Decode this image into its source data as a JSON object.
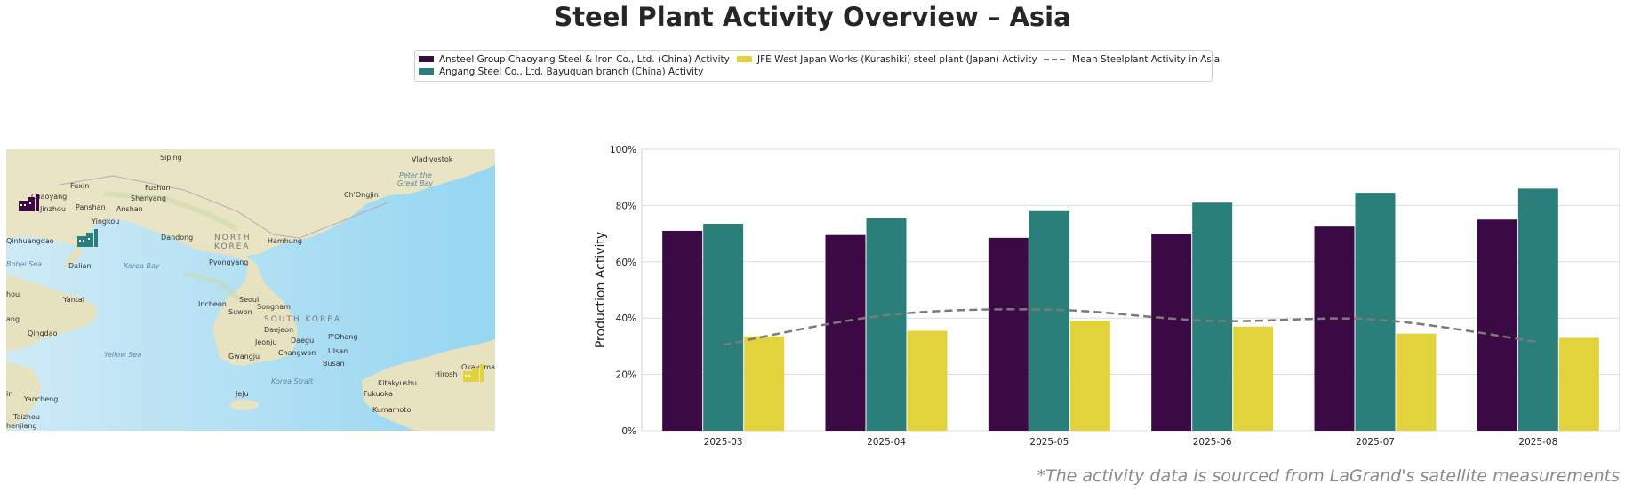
{
  "title": "Steel Plant Activity Overview – Asia",
  "source_note": "*The activity data is sourced from LaGrand's satellite measurements",
  "legend": {
    "placement": "top-center",
    "items": [
      {
        "label": "Ansteel Group Chaoyang Steel & Iron Co., Ltd. (China) Activity",
        "color": "#3b0a45",
        "kind": "bar"
      },
      {
        "label": "Angang Steel Co., Ltd. Bayuquan branch (China) Activity",
        "color": "#2a7f7a",
        "kind": "bar"
      },
      {
        "label": "JFE West Japan Works (Kurashiki) steel plant (Japan) Activity",
        "color": "#e2d23c",
        "kind": "bar"
      },
      {
        "label": "Mean Steelplant Activity in Asia",
        "color": "#7a7a7a",
        "kind": "dashed-line"
      }
    ]
  },
  "map": {
    "labels": {
      "sijiping": "Siping",
      "vladivostok": "Vladivostok",
      "fuxin": "Fuxin",
      "fushun": "Fushun",
      "chaoyang": "Chaoyang",
      "shenyang": "Shenyang",
      "jinzhou": "Jinzhou",
      "panshan": "Panshan",
      "anshan": "Anshan",
      "yingkou": "Yingkou",
      "chongjin": "Ch'Ongjin",
      "peter_bay": "Peter the",
      "peter_bay2": "Great Bay",
      "qinhuangdao": "Qinhuangdao",
      "dandong": "Dandong",
      "north_korea": "NORTH",
      "north_korea2": "KOREA",
      "hamhung": "Hamhung",
      "bohai": "Bohai Sea",
      "dalian": "Dalian",
      "korea_bay": "Korea Bay",
      "pyongyang": "Pyongyang",
      "yantai": "Yantai",
      "incheon": "Incheon",
      "seoul": "Seoul",
      "suwon": "Suwon",
      "songnam": "Songnam",
      "south_korea": "SOUTH KOREA",
      "daejeon": "Daejeon",
      "jeonju": "Jeonju",
      "daegu": "Daegu",
      "pohang": "P'Ohang",
      "qingdao": "Qingdao",
      "yellow_sea": "Yellow Sea",
      "gwangju": "Gwangju",
      "changwon": "Changwon",
      "ulsan": "Ulsan",
      "busan": "Busan",
      "korea_strait": "Korea Strait",
      "jeju": "Jeju",
      "kitakyushu": "Kitakyushu",
      "fukuoka": "Fukuoka",
      "kumamoto": "Kumamoto",
      "hiroshima": "Hirosh",
      "okayama": "Okayama",
      "yancheng": "Yancheng",
      "taizhou": "Taizhou",
      "zhenjiang": "henjiang",
      "left_ang": "ang",
      "left_in": "in",
      "left_hou": "hou"
    },
    "markers": [
      {
        "name": "Ansteel Group Chaoyang",
        "color": "#3b0a45"
      },
      {
        "name": "Angang Bayuquan",
        "color": "#2a7f7a"
      },
      {
        "name": "JFE Kurashiki",
        "color": "#e2d23c"
      }
    ]
  },
  "chart_data": {
    "type": "bar",
    "categories": [
      "2025-03",
      "2025-04",
      "2025-05",
      "2025-06",
      "2025-07",
      "2025-08"
    ],
    "series": [
      {
        "name": "Ansteel Group Chaoyang Steel & Iron Co., Ltd. (China) Activity",
        "color": "#3b0a45",
        "values": [
          71,
          69.5,
          68.5,
          70,
          72.5,
          75
        ]
      },
      {
        "name": "Angang Steel Co., Ltd. Bayuquan branch (China) Activity",
        "color": "#2a7f7a",
        "values": [
          73.5,
          75.5,
          78,
          81,
          84.5,
          86
        ]
      },
      {
        "name": "JFE West Japan Works (Kurashiki) steel plant (Japan) Activity",
        "color": "#e2d23c",
        "values": [
          33.5,
          35.5,
          39,
          37,
          34.5,
          33
        ]
      }
    ],
    "line_series": {
      "name": "Mean Steelplant Activity in Asia",
      "color": "#7a7a7a",
      "style": "dashed",
      "values": [
        30.5,
        41,
        43,
        39,
        39.5,
        31.5
      ]
    },
    "ylabel": "Production Activity",
    "xlabel": "",
    "ylim": [
      0,
      100
    ],
    "yticks": [
      0,
      20,
      40,
      60,
      80,
      100
    ],
    "ytick_labels": [
      "0%",
      "20%",
      "40%",
      "60%",
      "80%",
      "100%"
    ],
    "grid": "horizontal"
  }
}
